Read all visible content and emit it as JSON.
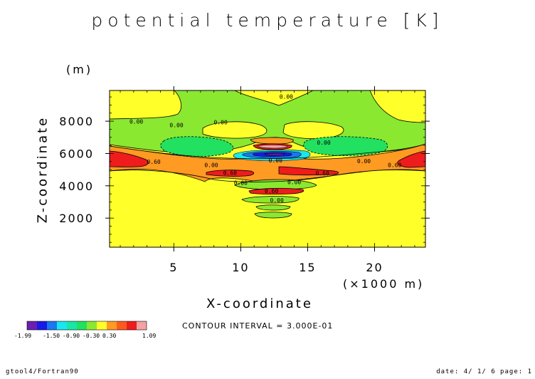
{
  "chart_data": {
    "type": "heatmap",
    "title": "potential temperature [K]",
    "xlabel": "X-coordinate",
    "ylabel": "Z-coordinate",
    "x_unit": "(×1000 m)",
    "y_unit": "(m)",
    "xlim": [
      0.2,
      23.8
    ],
    "ylim": [
      200,
      9900
    ],
    "x_ticks": [
      5,
      10,
      15,
      20
    ],
    "y_ticks": [
      2000,
      4000,
      6000,
      8000
    ],
    "contour_interval_text": "CONTOUR INTERVAL = 3.000E-01",
    "colorbar": {
      "labels": [
        "-1.99",
        "-1.50",
        "-0.90",
        "-0.30",
        "0.30",
        "1.09"
      ],
      "colors": [
        "#6a1fb0",
        "#1a1ae6",
        "#1a78f0",
        "#1ae6f0",
        "#1ae6a8",
        "#22e060",
        "#8ae830",
        "#ffff2a",
        "#ff9a22",
        "#ff5a1e",
        "#ee1c1c",
        "#f3a3a3"
      ]
    },
    "contour_labels": [
      {
        "x": 2.2,
        "y": 7850,
        "text": "0.00"
      },
      {
        "x": 8.5,
        "y": 7800,
        "text": "0.00"
      },
      {
        "x": 5.2,
        "y": 7630,
        "text": "0.00"
      },
      {
        "x": 13.4,
        "y": 9400,
        "text": "0.00"
      },
      {
        "x": 16.2,
        "y": 6540,
        "text": "0.00"
      },
      {
        "x": 3.5,
        "y": 5350,
        "text": "0.60"
      },
      {
        "x": 7.8,
        "y": 5150,
        "text": "0.00"
      },
      {
        "x": 19.2,
        "y": 5400,
        "text": "0.00"
      },
      {
        "x": 21.5,
        "y": 5160,
        "text": "0.60"
      },
      {
        "x": 9.2,
        "y": 4680,
        "text": "0.60"
      },
      {
        "x": 16.1,
        "y": 4660,
        "text": "0.60"
      },
      {
        "x": 12.6,
        "y": 5450,
        "text": "0.00"
      },
      {
        "x": 10.0,
        "y": 4050,
        "text": "0.00"
      },
      {
        "x": 14.0,
        "y": 4100,
        "text": "0.00"
      },
      {
        "x": 12.3,
        "y": 3560,
        "text": "0.60"
      },
      {
        "x": 12.7,
        "y": 2980,
        "text": "0.00"
      }
    ]
  },
  "footer": {
    "left": "gtool4/Fortran90",
    "right": "date: 4/ 1/ 6 page: 1"
  }
}
